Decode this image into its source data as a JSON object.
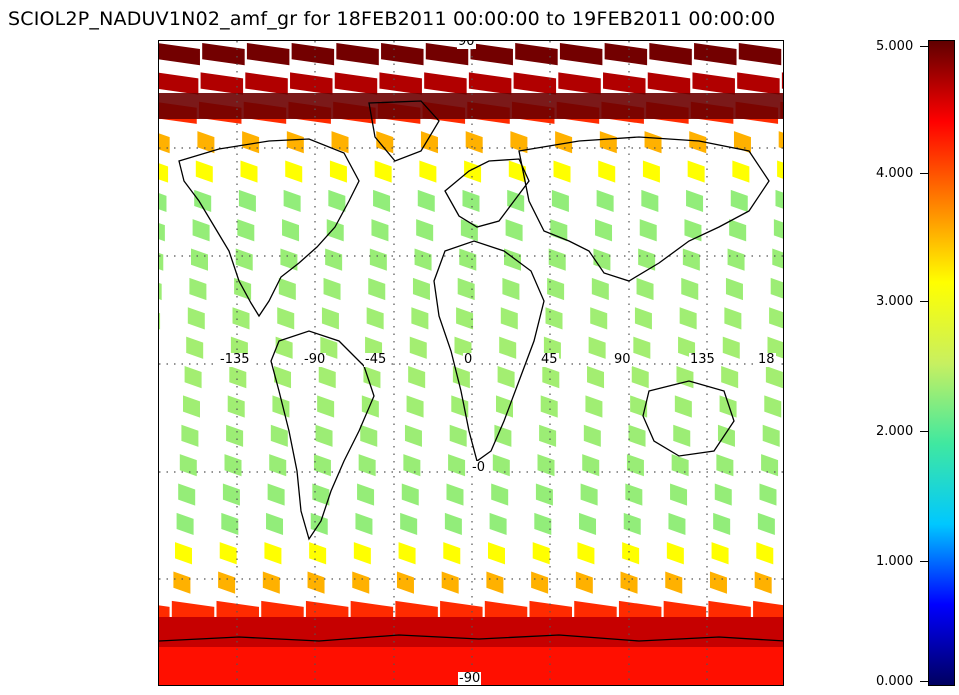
{
  "title": "SCIOL2P_NADUV1N02_amf_gr for 18FEB2011 00:00:00 to 19FEB2011 00:00:00",
  "map": {
    "projection": "cylindrical",
    "lat_labels": [
      "90",
      "-90",
      "-0"
    ],
    "lon_labels": [
      "-135",
      "-90",
      "-45",
      "0",
      "45",
      "90",
      "135",
      "18"
    ],
    "colors": {
      "frame": "#000000",
      "grid": "#555555",
      "coast": "#000000"
    }
  },
  "colorbar": {
    "ticks": [
      "5.000",
      "4.000",
      "3.000",
      "2.000",
      "1.000",
      "0.000"
    ],
    "min": 0,
    "max": 5,
    "stops": [
      "#000060",
      "#0000ff",
      "#00c8ff",
      "#40e8a0",
      "#c8f060",
      "#ffff00",
      "#ff8000",
      "#ff0000",
      "#600000"
    ]
  }
}
